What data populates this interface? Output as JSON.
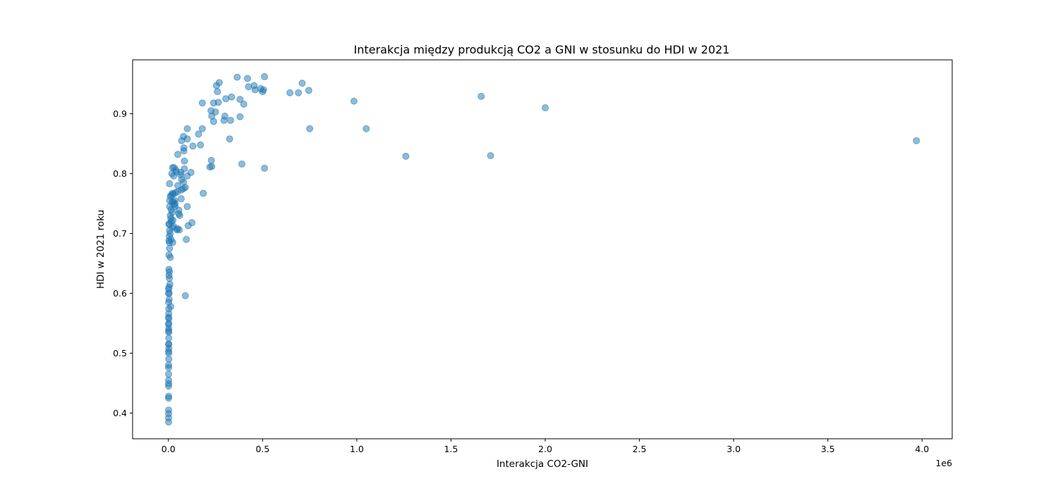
{
  "chart_data": {
    "type": "scatter",
    "title": "Interakcja między produkcją CO2 a GNI w stosunku do HDI w 2021",
    "xlabel": "Interakcja CO2-GNI",
    "ylabel": "HDI w 2021 roku",
    "x_offset_label": "1e6",
    "xlim": [
      -0.19,
      4.16
    ],
    "ylim": [
      0.357,
      0.99
    ],
    "x_ticks": [
      0.0,
      0.5,
      1.0,
      1.5,
      2.0,
      2.5,
      3.0,
      3.5,
      4.0
    ],
    "x_tick_labels": [
      "0.0",
      "0.5",
      "1.0",
      "1.5",
      "2.0",
      "2.5",
      "3.0",
      "3.5",
      "4.0"
    ],
    "y_ticks": [
      0.4,
      0.5,
      0.6,
      0.7,
      0.8,
      0.9
    ],
    "y_tick_labels": [
      "0.4",
      "0.5",
      "0.6",
      "0.7",
      "0.8",
      "0.9"
    ],
    "grid": false,
    "legend": "none",
    "color": "#1f77b4",
    "points": [
      [
        3.97,
        0.855
      ],
      [
        2.0,
        0.91
      ],
      [
        1.71,
        0.83
      ],
      [
        1.66,
        0.929
      ],
      [
        1.26,
        0.829
      ],
      [
        1.05,
        0.875
      ],
      [
        0.985,
        0.921
      ],
      [
        0.75,
        0.875
      ],
      [
        0.745,
        0.939
      ],
      [
        0.71,
        0.951
      ],
      [
        0.69,
        0.935
      ],
      [
        0.645,
        0.935
      ],
      [
        0.51,
        0.962
      ],
      [
        0.51,
        0.809
      ],
      [
        0.505,
        0.94
      ],
      [
        0.5,
        0.937
      ],
      [
        0.49,
        0.942
      ],
      [
        0.46,
        0.94
      ],
      [
        0.455,
        0.947
      ],
      [
        0.425,
        0.945
      ],
      [
        0.42,
        0.959
      ],
      [
        0.4,
        0.916
      ],
      [
        0.39,
        0.816
      ],
      [
        0.38,
        0.924
      ],
      [
        0.38,
        0.895
      ],
      [
        0.365,
        0.961
      ],
      [
        0.335,
        0.928
      ],
      [
        0.33,
        0.889
      ],
      [
        0.325,
        0.858
      ],
      [
        0.305,
        0.925
      ],
      [
        0.3,
        0.896
      ],
      [
        0.295,
        0.889
      ],
      [
        0.27,
        0.952
      ],
      [
        0.265,
        0.919
      ],
      [
        0.26,
        0.937
      ],
      [
        0.255,
        0.947
      ],
      [
        0.25,
        0.903
      ],
      [
        0.24,
        0.918
      ],
      [
        0.24,
        0.887
      ],
      [
        0.23,
        0.896
      ],
      [
        0.228,
        0.822
      ],
      [
        0.226,
        0.905
      ],
      [
        0.23,
        0.812
      ],
      [
        0.22,
        0.811
      ],
      [
        0.185,
        0.767
      ],
      [
        0.18,
        0.918
      ],
      [
        0.18,
        0.875
      ],
      [
        0.17,
        0.848
      ],
      [
        0.16,
        0.866
      ],
      [
        0.13,
        0.846
      ],
      [
        0.125,
        0.718
      ],
      [
        0.12,
        0.802
      ],
      [
        0.105,
        0.713
      ],
      [
        0.1,
        0.875
      ],
      [
        0.1,
        0.858
      ],
      [
        0.1,
        0.796
      ],
      [
        0.1,
        0.745
      ],
      [
        0.095,
        0.69
      ],
      [
        0.09,
        0.596
      ],
      [
        0.09,
        0.777
      ],
      [
        0.085,
        0.821
      ],
      [
        0.085,
        0.808
      ],
      [
        0.082,
        0.843
      ],
      [
        0.082,
        0.838
      ],
      [
        0.08,
        0.862
      ],
      [
        0.08,
        0.786
      ],
      [
        0.08,
        0.775
      ],
      [
        0.07,
        0.855
      ],
      [
        0.07,
        0.79
      ],
      [
        0.07,
        0.773
      ],
      [
        0.068,
        0.758
      ],
      [
        0.066,
        0.802
      ],
      [
        0.065,
        0.798
      ],
      [
        0.06,
        0.73
      ],
      [
        0.058,
        0.706
      ],
      [
        0.055,
        0.739
      ],
      [
        0.055,
        0.733
      ],
      [
        0.05,
        0.832
      ],
      [
        0.05,
        0.78
      ],
      [
        0.05,
        0.77
      ],
      [
        0.048,
        0.708
      ],
      [
        0.045,
        0.706
      ],
      [
        0.04,
        0.806
      ],
      [
        0.04,
        0.803
      ],
      [
        0.038,
        0.768
      ],
      [
        0.036,
        0.75
      ],
      [
        0.035,
        0.745
      ],
      [
        0.034,
        0.755
      ],
      [
        0.03,
        0.81
      ],
      [
        0.03,
        0.748
      ],
      [
        0.028,
        0.796
      ],
      [
        0.027,
        0.712
      ],
      [
        0.026,
        0.766
      ],
      [
        0.025,
        0.753
      ],
      [
        0.024,
        0.722
      ],
      [
        0.023,
        0.685
      ],
      [
        0.022,
        0.81
      ],
      [
        0.021,
        0.767
      ],
      [
        0.02,
        0.752
      ],
      [
        0.02,
        0.735
      ],
      [
        0.02,
        0.71
      ],
      [
        0.018,
        0.8
      ],
      [
        0.016,
        0.764
      ],
      [
        0.015,
        0.72
      ],
      [
        0.015,
        0.69
      ],
      [
        0.014,
        0.74
      ],
      [
        0.013,
        0.725
      ],
      [
        0.012,
        0.578
      ],
      [
        0.01,
        0.762
      ],
      [
        0.01,
        0.73
      ],
      [
        0.01,
        0.66
      ],
      [
        0.009,
        0.7
      ],
      [
        0.008,
        0.615
      ],
      [
        0.007,
        0.755
      ],
      [
        0.007,
        0.745
      ],
      [
        0.006,
        0.783
      ],
      [
        0.006,
        0.705
      ],
      [
        0.006,
        0.675
      ],
      [
        0.005,
        0.695
      ],
      [
        0.005,
        0.685
      ],
      [
        0.005,
        0.636
      ],
      [
        0.005,
        0.625
      ],
      [
        0.004,
        0.715
      ],
      [
        0.004,
        0.6
      ],
      [
        0.004,
        0.59
      ],
      [
        0.003,
        0.716
      ],
      [
        0.003,
        0.688
      ],
      [
        0.003,
        0.664
      ],
      [
        0.003,
        0.64
      ],
      [
        0.003,
        0.63
      ],
      [
        0.003,
        0.61
      ],
      [
        0.002,
        0.574
      ],
      [
        0.002,
        0.566
      ],
      [
        0.002,
        0.558
      ],
      [
        0.002,
        0.55
      ],
      [
        0.002,
        0.541
      ],
      [
        0.002,
        0.535
      ],
      [
        0.002,
        0.525
      ],
      [
        0.002,
        0.515
      ],
      [
        0.002,
        0.508
      ],
      [
        0.002,
        0.5
      ],
      [
        0.002,
        0.49
      ],
      [
        0.001,
        0.607
      ],
      [
        0.001,
        0.6
      ],
      [
        0.001,
        0.585
      ],
      [
        0.001,
        0.56
      ],
      [
        0.001,
        0.548
      ],
      [
        0.001,
        0.537
      ],
      [
        0.001,
        0.515
      ],
      [
        0.001,
        0.503
      ],
      [
        0.001,
        0.48
      ],
      [
        0.001,
        0.476
      ],
      [
        0.001,
        0.465
      ],
      [
        0.001,
        0.455
      ],
      [
        0.001,
        0.449
      ],
      [
        0.001,
        0.445
      ],
      [
        0.001,
        0.428
      ],
      [
        0.001,
        0.425
      ],
      [
        0.001,
        0.405
      ],
      [
        0.001,
        0.399
      ],
      [
        0.001,
        0.392
      ],
      [
        0.001,
        0.385
      ]
    ]
  }
}
